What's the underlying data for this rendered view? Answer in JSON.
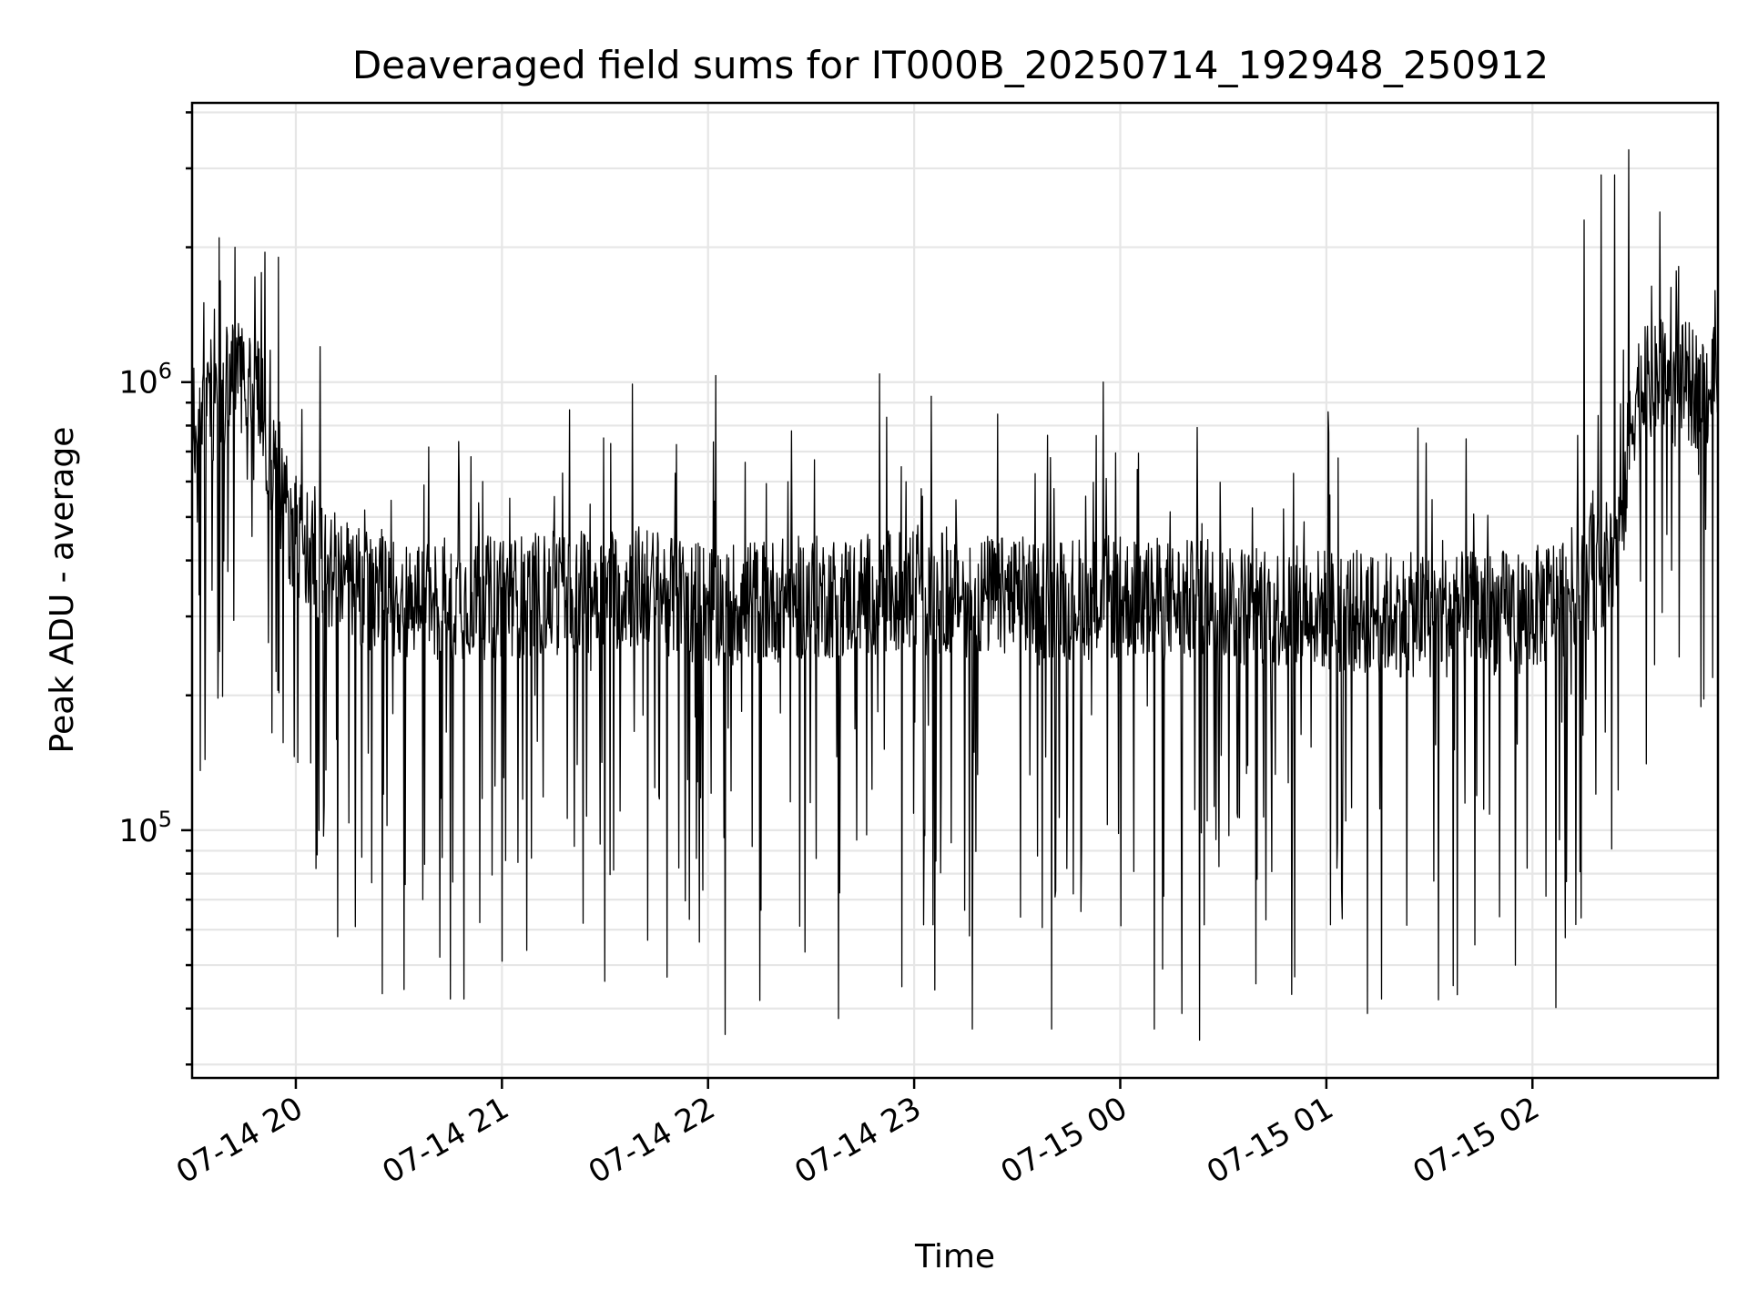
{
  "chart_data": {
    "type": "line",
    "title": "Deaveraged field sums for IT000B_20250714_192948_250912",
    "xlabel": "Time",
    "ylabel": "Peak ADU - average",
    "y_scale": "log",
    "ylim": [
      28000,
      4200000
    ],
    "xlim": [
      "2025-07-14 19:29:48",
      "2025-07-15 02:54:00"
    ],
    "x_ticks": [
      {
        "t": "2025-07-14 20:00",
        "label": "07-14 20"
      },
      {
        "t": "2025-07-14 21:00",
        "label": "07-14 21"
      },
      {
        "t": "2025-07-14 22:00",
        "label": "07-14 22"
      },
      {
        "t": "2025-07-14 23:00",
        "label": "07-14 23"
      },
      {
        "t": "2025-07-15 00:00",
        "label": "07-15 00"
      },
      {
        "t": "2025-07-15 01:00",
        "label": "07-15 01"
      },
      {
        "t": "2025-07-15 02:00",
        "label": "07-15 02"
      }
    ],
    "y_ticks": [
      {
        "value": 100000,
        "base": "10",
        "exp": "5"
      },
      {
        "value": 1000000,
        "base": "10",
        "exp": "6"
      }
    ],
    "grid": true,
    "series": [
      {
        "color": "#000000",
        "x": [
          "2025-07-14 19:29:48",
          "2025-07-14 19:35",
          "2025-07-14 19:42",
          "2025-07-14 19:48",
          "2025-07-14 19:52",
          "2025-07-14 19:55",
          "2025-07-14 20:00",
          "2025-07-14 20:10",
          "2025-07-14 20:20",
          "2025-07-14 20:30",
          "2025-07-14 20:45",
          "2025-07-14 21:00",
          "2025-07-14 21:20",
          "2025-07-14 21:40",
          "2025-07-14 22:00",
          "2025-07-14 22:30",
          "2025-07-14 23:00",
          "2025-07-14 23:30",
          "2025-07-15 00:00",
          "2025-07-15 00:30",
          "2025-07-15 01:00",
          "2025-07-15 01:30",
          "2025-07-15 02:00",
          "2025-07-15 02:10",
          "2025-07-15 02:20",
          "2025-07-15 02:25",
          "2025-07-15 02:30",
          "2025-07-15 02:40",
          "2025-07-15 02:54"
        ],
        "values": [
          820000,
          900000,
          1000000,
          1100000,
          700000,
          560000,
          450000,
          380000,
          340000,
          330000,
          330000,
          330000,
          340000,
          350000,
          320000,
          330000,
          340000,
          330000,
          330000,
          320000,
          310000,
          300000,
          310000,
          340000,
          380000,
          430000,
          950000,
          1000000,
          960000
        ],
        "peaks": [
          {
            "t": "2025-07-14 19:53",
            "v": 2200000
          },
          {
            "t": "2025-07-14 19:51",
            "v": 1950000
          },
          {
            "t": "2025-07-14 19:55",
            "v": 1900000
          },
          {
            "t": "2025-07-14 20:07",
            "v": 1200000
          },
          {
            "t": "2025-07-14 21:38",
            "v": 990000
          },
          {
            "t": "2025-07-14 23:05",
            "v": 930000
          },
          {
            "t": "2025-07-14 23:55",
            "v": 1000000
          },
          {
            "t": "2025-07-15 02:20",
            "v": 2900000
          },
          {
            "t": "2025-07-15 02:24",
            "v": 2900000
          },
          {
            "t": "2025-07-15 02:28",
            "v": 3300000
          },
          {
            "t": "2025-07-15 02:15",
            "v": 2300000
          }
        ],
        "troughs": [
          {
            "t": "2025-07-14 19:53",
            "v": 165000
          },
          {
            "t": "2025-07-14 20:08",
            "v": 97000
          },
          {
            "t": "2025-07-14 20:37",
            "v": 70000
          },
          {
            "t": "2025-07-14 20:45",
            "v": 42000
          },
          {
            "t": "2025-07-14 20:49",
            "v": 42000
          },
          {
            "t": "2025-07-14 21:00",
            "v": 51000
          },
          {
            "t": "2025-07-14 21:30",
            "v": 46000
          },
          {
            "t": "2025-07-14 21:48",
            "v": 47000
          },
          {
            "t": "2025-07-14 22:05",
            "v": 35000
          },
          {
            "t": "2025-07-14 22:38",
            "v": 38000
          },
          {
            "t": "2025-07-14 23:06",
            "v": 44000
          },
          {
            "t": "2025-07-14 23:17",
            "v": 36000
          },
          {
            "t": "2025-07-14 23:40",
            "v": 36000
          },
          {
            "t": "2025-07-15 00:10",
            "v": 36000
          },
          {
            "t": "2025-07-15 00:18",
            "v": 39000
          },
          {
            "t": "2025-07-15 00:23",
            "v": 34000
          },
          {
            "t": "2025-07-15 00:50",
            "v": 43000
          },
          {
            "t": "2025-07-15 01:12",
            "v": 39000
          },
          {
            "t": "2025-07-15 01:16",
            "v": 42000
          },
          {
            "t": "2025-07-15 01:37",
            "v": 45000
          },
          {
            "t": "2025-07-15 01:55",
            "v": 50000
          },
          {
            "t": "2025-07-15 02:25",
            "v": 123000
          }
        ]
      }
    ]
  }
}
